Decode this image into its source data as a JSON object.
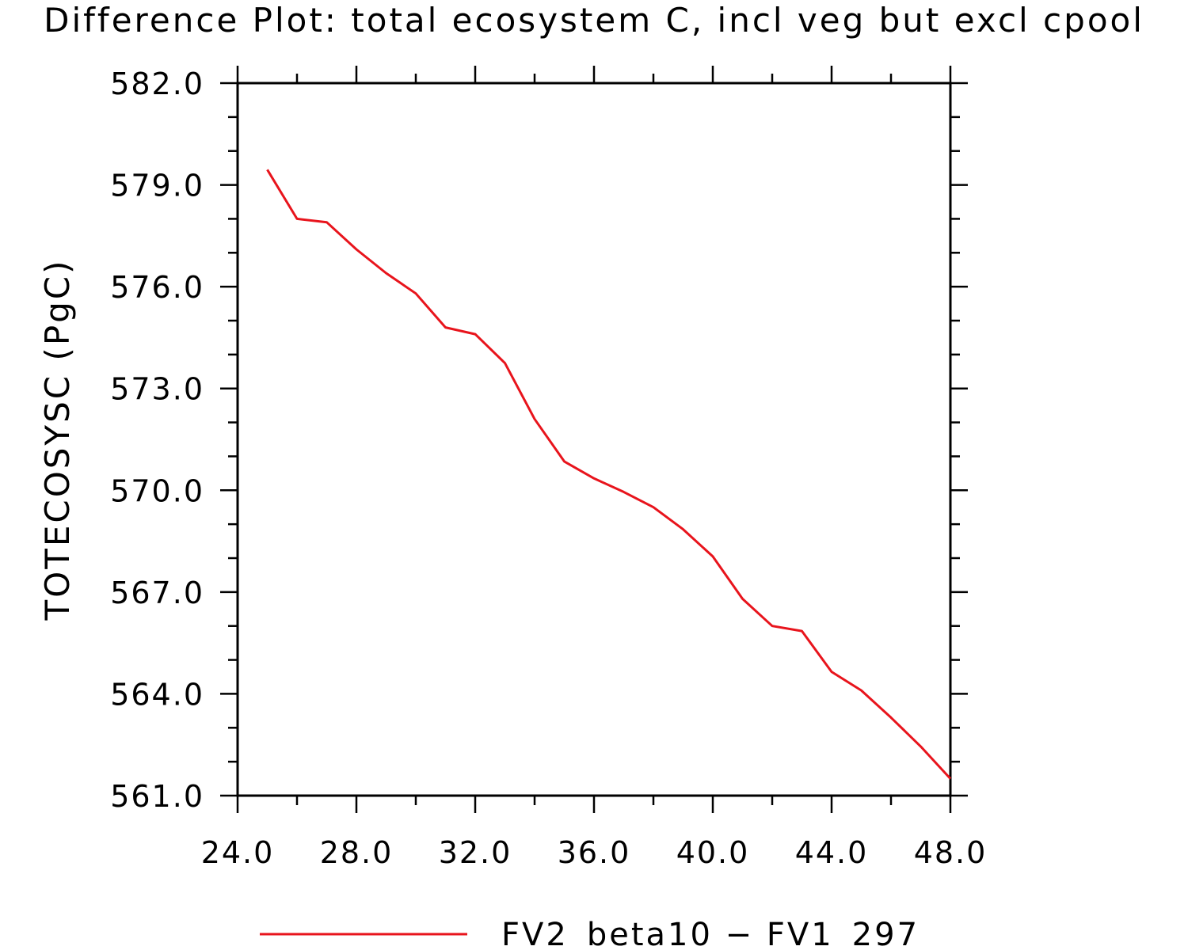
{
  "chart_data": {
    "type": "line",
    "title": "Difference Plot: total ecosystem C, incl veg but excl cpool",
    "xlabel": "",
    "ylabel": "TOTECOSYSC   (PgC)",
    "xlim": [
      24.0,
      48.0
    ],
    "ylim": [
      561.0,
      582.0
    ],
    "x_ticks": [
      "24.0",
      "28.0",
      "32.0",
      "36.0",
      "40.0",
      "44.0",
      "48.0"
    ],
    "y_ticks": [
      "561.0",
      "564.0",
      "567.0",
      "570.0",
      "573.0",
      "576.0",
      "579.0",
      "582.0"
    ],
    "grid": false,
    "legend_position": "bottom",
    "series": [
      {
        "name": "FV2_beta10 − FV1_297",
        "color": "#e8141c",
        "x": [
          25,
          26,
          27,
          28,
          29,
          30,
          31,
          32,
          33,
          34,
          35,
          36,
          37,
          38,
          39,
          40,
          41,
          42,
          43,
          44,
          45,
          46,
          47,
          48
        ],
        "values": [
          579.45,
          578.0,
          577.9,
          577.1,
          576.4,
          575.8,
          574.8,
          574.6,
          573.75,
          572.1,
          570.85,
          570.35,
          569.95,
          569.5,
          568.85,
          568.05,
          566.8,
          566.0,
          565.85,
          564.65,
          564.1,
          563.3,
          562.45,
          561.5
        ]
      }
    ]
  }
}
